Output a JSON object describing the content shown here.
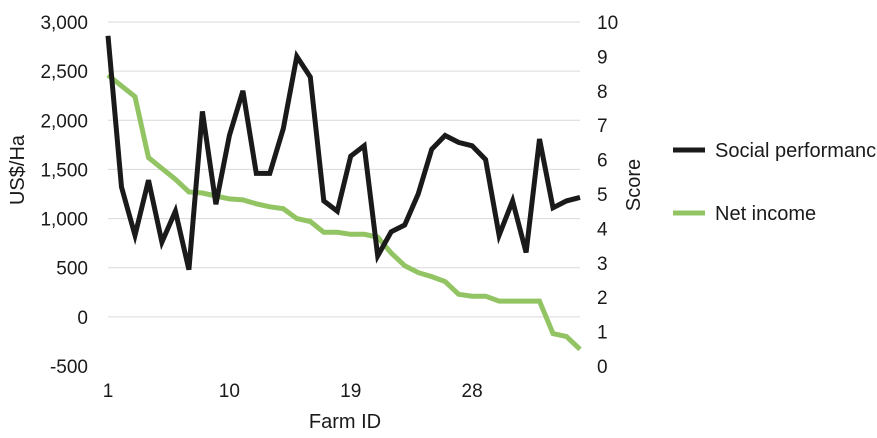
{
  "chart_data": {
    "type": "line",
    "x": [
      1,
      2,
      3,
      4,
      5,
      6,
      7,
      8,
      9,
      10,
      11,
      12,
      13,
      14,
      15,
      16,
      17,
      18,
      19,
      20,
      21,
      22,
      23,
      24,
      25,
      26,
      27,
      28,
      29,
      30,
      31,
      32,
      33,
      34,
      35,
      36
    ],
    "xlabel": "Farm ID",
    "x_ticks": [
      "1",
      "10",
      "19",
      "28"
    ],
    "ylabel_left": "US$/Ha",
    "ylabel_right": "Score",
    "ylim_left": [
      -500,
      3000
    ],
    "ylim_right": [
      0,
      10
    ],
    "y_ticks_left": [
      "-500",
      "0",
      "500",
      "1,000",
      "1,500",
      "2,000",
      "2,500",
      "3,000"
    ],
    "y_ticks_right": [
      "0",
      "1",
      "2",
      "3",
      "4",
      "5",
      "6",
      "7",
      "8",
      "9",
      "10"
    ],
    "grid": true,
    "legend_position": "right",
    "series": [
      {
        "name": "Social performance",
        "axis": "right",
        "color": "#1a1a1a",
        "values": [
          9.6,
          5.2,
          3.8,
          5.4,
          3.6,
          4.5,
          2.8,
          7.4,
          4.7,
          6.7,
          8.0,
          5.6,
          5.6,
          6.9,
          9.0,
          8.4,
          4.8,
          4.5,
          6.1,
          6.4,
          3.2,
          3.9,
          4.1,
          5.0,
          6.3,
          6.7,
          6.5,
          6.4,
          6.0,
          3.8,
          4.8,
          3.3,
          6.6,
          4.6,
          4.8,
          4.9
        ]
      },
      {
        "name": "Net income",
        "axis": "left",
        "color": "#92c464",
        "values": [
          2460,
          2350,
          2240,
          1620,
          1510,
          1400,
          1270,
          1260,
          1230,
          1200,
          1190,
          1150,
          1120,
          1100,
          1000,
          970,
          860,
          860,
          840,
          840,
          810,
          650,
          520,
          450,
          410,
          360,
          230,
          210,
          210,
          160,
          160,
          160,
          160,
          -170,
          -200,
          -330
        ]
      }
    ]
  }
}
